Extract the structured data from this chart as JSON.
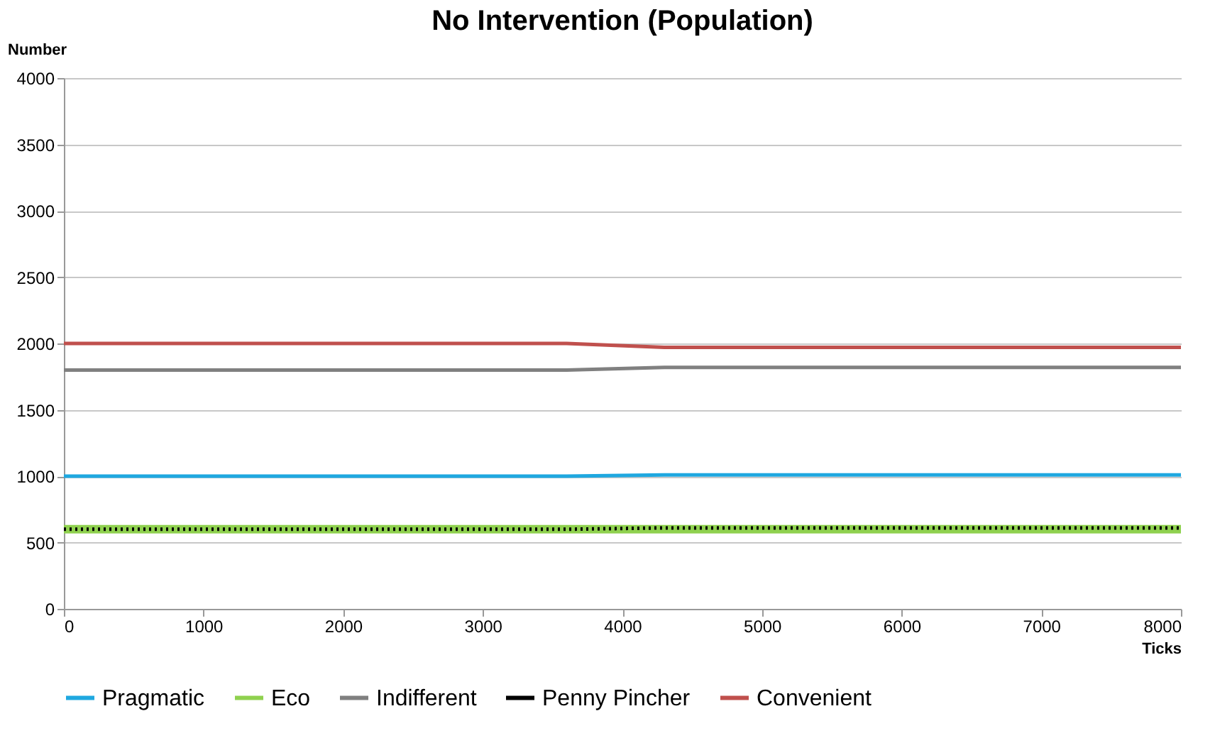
{
  "chart_data": {
    "type": "line",
    "title": "No Intervention (Population)",
    "xlabel": "Ticks",
    "ylabel": "Number",
    "xlim": [
      0,
      8000
    ],
    "xticks": [
      0,
      1000,
      2000,
      3000,
      4000,
      5000,
      6000,
      7000,
      8000
    ],
    "ylim": [
      0,
      4000
    ],
    "yticks": [
      0,
      500,
      1000,
      1500,
      2000,
      2500,
      3000,
      3500,
      4000
    ],
    "grid": "y",
    "legend": "bottom",
    "series": [
      {
        "name": "Pragmatic",
        "color": "#1fa8e0",
        "line_style": "solid",
        "x": [
          0,
          3600,
          4300,
          8000
        ],
        "values": [
          1000,
          1000,
          1010,
          1010
        ]
      },
      {
        "name": "Eco",
        "color": "#8fd14f",
        "line_style": "solid",
        "x": [
          0,
          3600,
          4300,
          8000
        ],
        "values": [
          600,
          600,
          600,
          600
        ]
      },
      {
        "name": "Indifferent",
        "color": "#808080",
        "line_style": "solid",
        "x": [
          0,
          3600,
          4300,
          8000
        ],
        "values": [
          1800,
          1800,
          1820,
          1820
        ]
      },
      {
        "name": "Penny Pincher",
        "color": "#000000",
        "line_style": "dotted",
        "x": [
          0,
          3600,
          4300,
          8000
        ],
        "values": [
          600,
          600,
          610,
          610
        ]
      },
      {
        "name": "Convenient",
        "color": "#c0504d",
        "line_style": "solid",
        "x": [
          0,
          3600,
          4300,
          8000
        ],
        "values": [
          2000,
          2000,
          1970,
          1970
        ]
      }
    ]
  }
}
